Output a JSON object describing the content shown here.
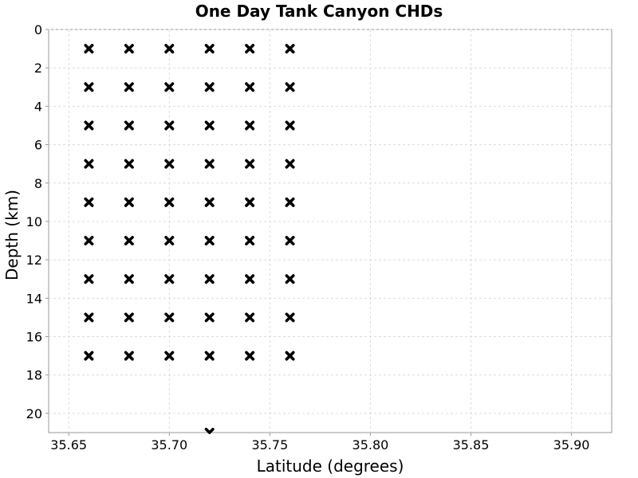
{
  "chart_data": {
    "type": "scatter",
    "title": "One Day Tank Canyon CHDs",
    "xlabel": "Latitude (degrees)",
    "ylabel": "Depth (km)",
    "xlim": [
      35.64,
      35.92
    ],
    "ylim": [
      0,
      21
    ],
    "y_inverted": true,
    "grid": true,
    "marker": "x",
    "marker_color": "#000000",
    "x_ticks": [
      {
        "value": 35.65,
        "label": "35.65"
      },
      {
        "value": 35.7,
        "label": "35.70"
      },
      {
        "value": 35.75,
        "label": "35.75"
      },
      {
        "value": 35.8,
        "label": "35.80"
      },
      {
        "value": 35.85,
        "label": "35.85"
      },
      {
        "value": 35.9,
        "label": "35.90"
      }
    ],
    "y_ticks": [
      {
        "value": 0,
        "label": "0"
      },
      {
        "value": 2,
        "label": "2"
      },
      {
        "value": 4,
        "label": "4"
      },
      {
        "value": 6,
        "label": "6"
      },
      {
        "value": 8,
        "label": "8"
      },
      {
        "value": 10,
        "label": "10"
      },
      {
        "value": 12,
        "label": "12"
      },
      {
        "value": 14,
        "label": "14"
      },
      {
        "value": 16,
        "label": "16"
      },
      {
        "value": 18,
        "label": "18"
      },
      {
        "value": 20,
        "label": "20"
      }
    ],
    "points": [
      {
        "x": 35.66,
        "y": 1
      },
      {
        "x": 35.68,
        "y": 1
      },
      {
        "x": 35.7,
        "y": 1
      },
      {
        "x": 35.72,
        "y": 1
      },
      {
        "x": 35.74,
        "y": 1
      },
      {
        "x": 35.76,
        "y": 1
      },
      {
        "x": 35.66,
        "y": 3
      },
      {
        "x": 35.68,
        "y": 3
      },
      {
        "x": 35.7,
        "y": 3
      },
      {
        "x": 35.72,
        "y": 3
      },
      {
        "x": 35.74,
        "y": 3
      },
      {
        "x": 35.76,
        "y": 3
      },
      {
        "x": 35.66,
        "y": 5
      },
      {
        "x": 35.68,
        "y": 5
      },
      {
        "x": 35.7,
        "y": 5
      },
      {
        "x": 35.72,
        "y": 5
      },
      {
        "x": 35.74,
        "y": 5
      },
      {
        "x": 35.76,
        "y": 5
      },
      {
        "x": 35.66,
        "y": 7
      },
      {
        "x": 35.68,
        "y": 7
      },
      {
        "x": 35.7,
        "y": 7
      },
      {
        "x": 35.72,
        "y": 7
      },
      {
        "x": 35.74,
        "y": 7
      },
      {
        "x": 35.76,
        "y": 7
      },
      {
        "x": 35.66,
        "y": 9
      },
      {
        "x": 35.68,
        "y": 9
      },
      {
        "x": 35.7,
        "y": 9
      },
      {
        "x": 35.72,
        "y": 9
      },
      {
        "x": 35.74,
        "y": 9
      },
      {
        "x": 35.76,
        "y": 9
      },
      {
        "x": 35.66,
        "y": 11
      },
      {
        "x": 35.68,
        "y": 11
      },
      {
        "x": 35.7,
        "y": 11
      },
      {
        "x": 35.72,
        "y": 11
      },
      {
        "x": 35.74,
        "y": 11
      },
      {
        "x": 35.76,
        "y": 11
      },
      {
        "x": 35.66,
        "y": 13
      },
      {
        "x": 35.68,
        "y": 13
      },
      {
        "x": 35.7,
        "y": 13
      },
      {
        "x": 35.72,
        "y": 13
      },
      {
        "x": 35.74,
        "y": 13
      },
      {
        "x": 35.76,
        "y": 13
      },
      {
        "x": 35.66,
        "y": 15
      },
      {
        "x": 35.68,
        "y": 15
      },
      {
        "x": 35.7,
        "y": 15
      },
      {
        "x": 35.72,
        "y": 15
      },
      {
        "x": 35.74,
        "y": 15
      },
      {
        "x": 35.76,
        "y": 15
      },
      {
        "x": 35.66,
        "y": 17
      },
      {
        "x": 35.68,
        "y": 17
      },
      {
        "x": 35.7,
        "y": 17
      },
      {
        "x": 35.72,
        "y": 17
      },
      {
        "x": 35.74,
        "y": 17
      },
      {
        "x": 35.76,
        "y": 17
      },
      {
        "x": 35.72,
        "y": 21
      }
    ]
  }
}
